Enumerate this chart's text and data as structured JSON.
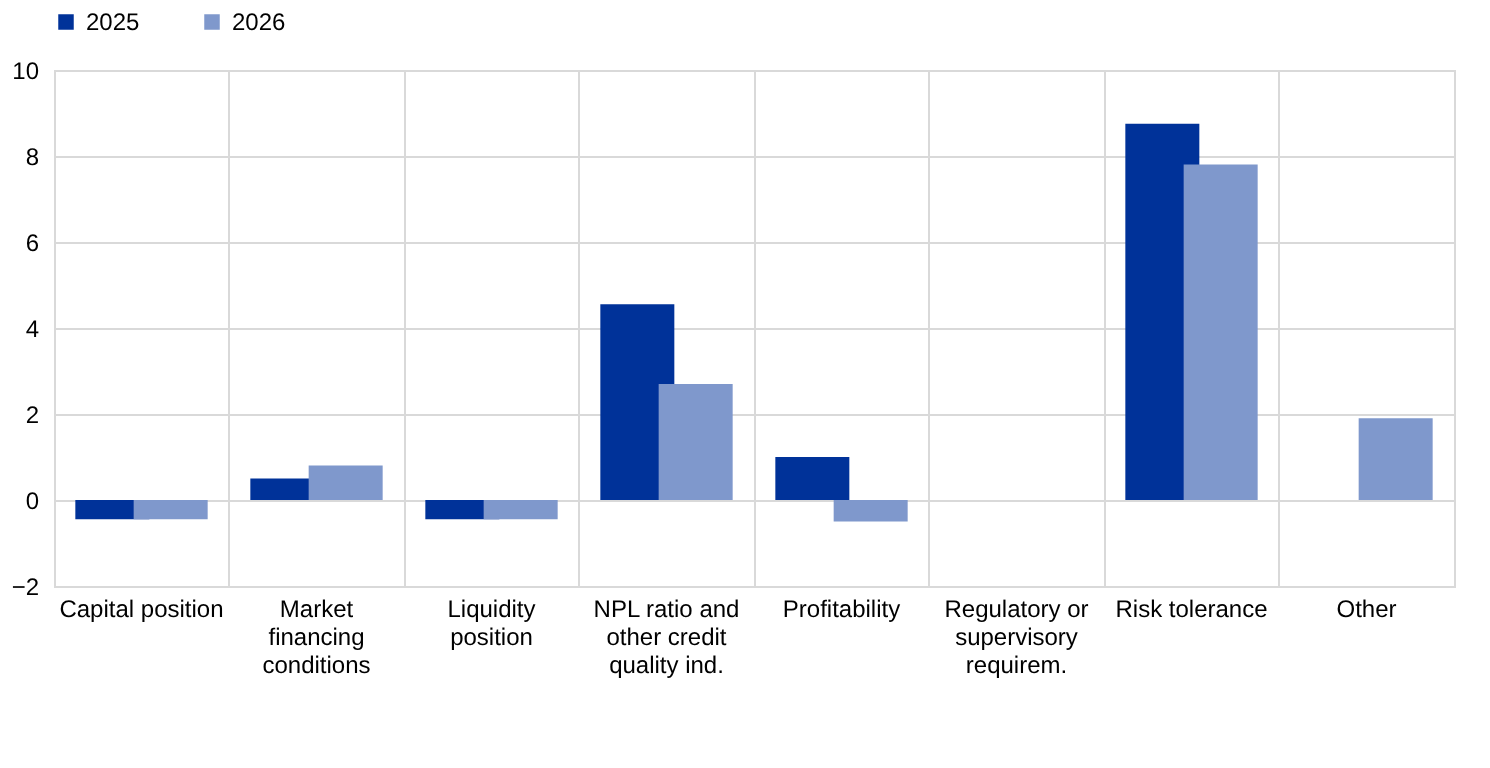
{
  "chart_data": {
    "type": "bar",
    "categories": [
      "Capital position",
      "Market financing conditions",
      "Liquidity position",
      "NPL ratio and other credit quality ind.",
      "Profitability",
      "Regulatory or supervisory requirem.",
      "Risk tolerance",
      "Other"
    ],
    "series": [
      {
        "name": "2025",
        "color": "#003299",
        "values": [
          -0.45,
          0.5,
          -0.45,
          4.55,
          1.0,
          0,
          8.75,
          0
        ]
      },
      {
        "name": "2026",
        "color": "#7f98cc",
        "values": [
          -0.45,
          0.8,
          -0.45,
          2.7,
          -0.5,
          0,
          7.8,
          1.9
        ]
      }
    ],
    "ylim": [
      -2,
      10
    ],
    "yticks": [
      -2,
      0,
      2,
      4,
      6,
      8,
      10
    ],
    "grid": true,
    "legend": "top"
  }
}
